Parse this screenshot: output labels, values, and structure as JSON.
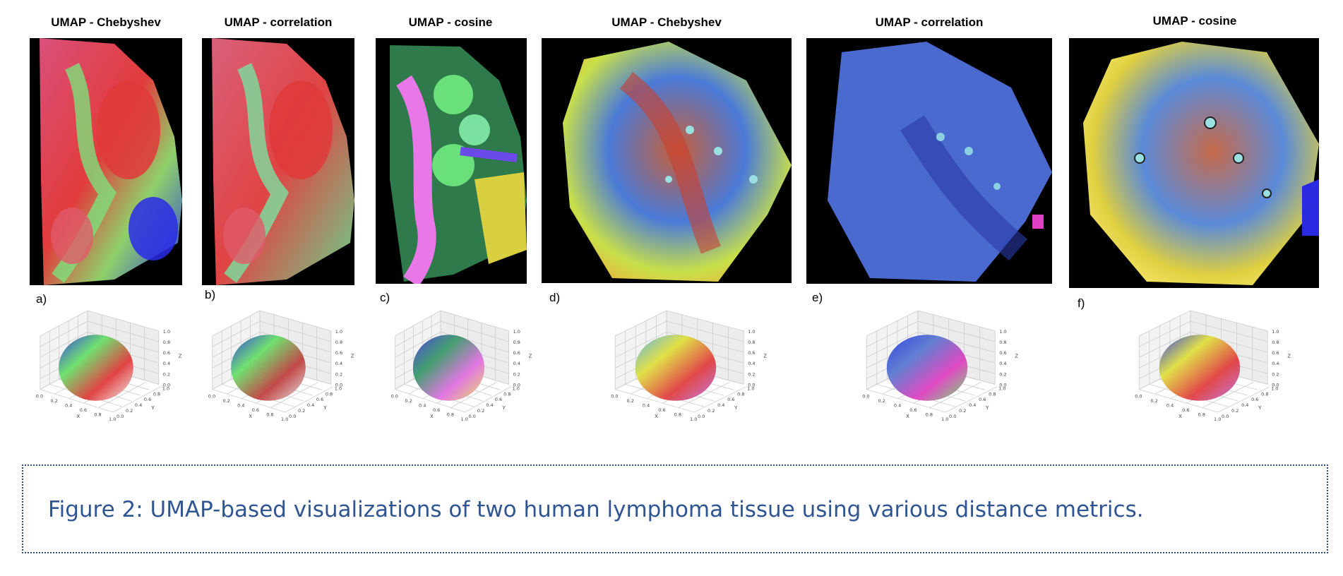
{
  "figure": {
    "panels": [
      {
        "title": "UMAP - Chebyshev",
        "label": "a)"
      },
      {
        "title": "UMAP - correlation",
        "label": "b)"
      },
      {
        "title": "UMAP - cosine",
        "label": "c)"
      },
      {
        "title": "UMAP - Chebyshev",
        "label": "d)"
      },
      {
        "title": "UMAP - correlation",
        "label": "e)"
      },
      {
        "title": "UMAP - cosine",
        "label": "f)"
      }
    ],
    "ticks": [
      "0.0",
      "0.2",
      "0.4",
      "0.6",
      "0.8",
      "1.0"
    ],
    "axis_labels": {
      "x": "X",
      "y": "Y",
      "z": "Z"
    }
  },
  "caption": "Figure 2: UMAP-based visualizations of two human lymphoma tissue using various distance metrics."
}
